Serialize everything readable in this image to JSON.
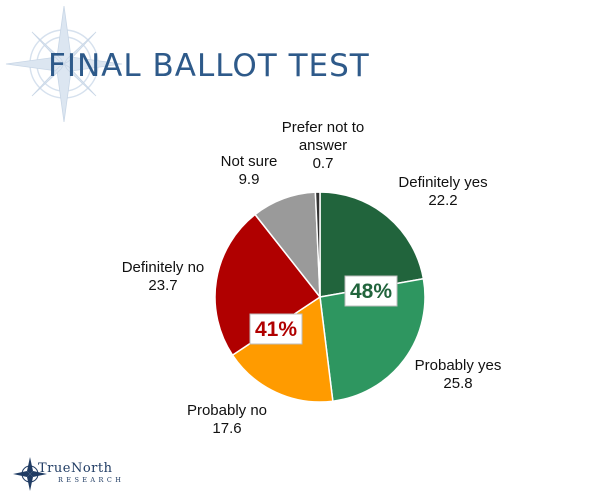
{
  "slide": {
    "title": "FINAL BALLOT TEST",
    "logo": {
      "main": "TrueNorth",
      "sub": "RESEARCH"
    }
  },
  "chart_data": {
    "type": "pie",
    "title": "",
    "slices": [
      {
        "label": "Definitely yes",
        "value": 22.2,
        "color": "#21643c"
      },
      {
        "label": "Probably yes",
        "value": 25.8,
        "color": "#2e9660"
      },
      {
        "label": "Probably no",
        "value": 17.6,
        "color": "#ff9b00"
      },
      {
        "label": "Definitely no",
        "value": 23.7,
        "color": "#b00000"
      },
      {
        "label": "Not sure",
        "value": 9.9,
        "color": "#9a9a9a"
      },
      {
        "label": "Prefer not to answer",
        "value": 0.7,
        "color": "#333333"
      }
    ],
    "slice_labels": [
      {
        "lines": [
          "Definitely yes"
        ],
        "value": "22.2"
      },
      {
        "lines": [
          "Probably yes"
        ],
        "value": "25.8"
      },
      {
        "lines": [
          "Probably no"
        ],
        "value": "17.6"
      },
      {
        "lines": [
          "Definitely no"
        ],
        "value": "23.7"
      },
      {
        "lines": [
          "Not sure"
        ],
        "value": "9.9"
      },
      {
        "lines": [
          "Prefer not to",
          "answer"
        ],
        "value": "0.7"
      }
    ],
    "callouts": [
      {
        "text": "48%",
        "color": "#21643c"
      },
      {
        "text": "41%",
        "color": "#b00000"
      }
    ]
  }
}
